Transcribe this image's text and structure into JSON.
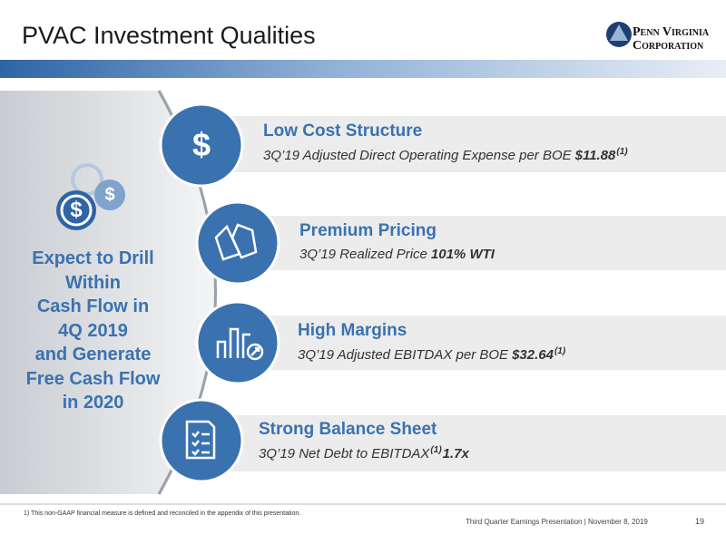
{
  "header": {
    "title": "PVAC Investment Qualities",
    "logo": {
      "line1": "Penn Virginia",
      "line2": "Corporation"
    }
  },
  "sidebar": {
    "lines": [
      "Expect to Drill",
      "Within",
      "Cash Flow in",
      "4Q 2019",
      "and Generate",
      "Free Cash Flow",
      "in 2020"
    ]
  },
  "items": [
    {
      "icon": "$",
      "title": "Low Cost Structure",
      "parts": [
        {
          "text": "3Q’19 Adjusted Direct Operating Expense per BOE",
          "style": "italic"
        },
        {
          "text": "$11.88",
          "style": "bold"
        },
        {
          "text": "(1)",
          "style": "sup"
        }
      ]
    },
    {
      "title": "Premium Pricing",
      "parts": [
        {
          "text": "3Q’19 Realized Price",
          "style": "italic"
        },
        {
          "text": "101% WTI",
          "style": "bold"
        }
      ]
    },
    {
      "title": "High Margins",
      "parts": [
        {
          "text": "3Q’19 Adjusted EBITDAX per BOE",
          "style": "italic"
        },
        {
          "text": "$32.64",
          "style": "bold"
        },
        {
          "text": "(1)",
          "style": "sup"
        }
      ]
    },
    {
      "title": "Strong Balance Sheet",
      "parts": [
        {
          "text": "3Q’19 Net Debt to EBITDAX",
          "style": "italic"
        },
        {
          "text": "(1)",
          "style": "sup"
        },
        {
          "text": "1.7x",
          "style": "bold"
        }
      ]
    }
  ],
  "footnote": "1)  This non-GAAP financial measure is defined and reconciled in the appendix of this presentation.",
  "footer": {
    "text": "Third Quarter Earnings Presentation | November 8, 2019",
    "page": "19"
  }
}
